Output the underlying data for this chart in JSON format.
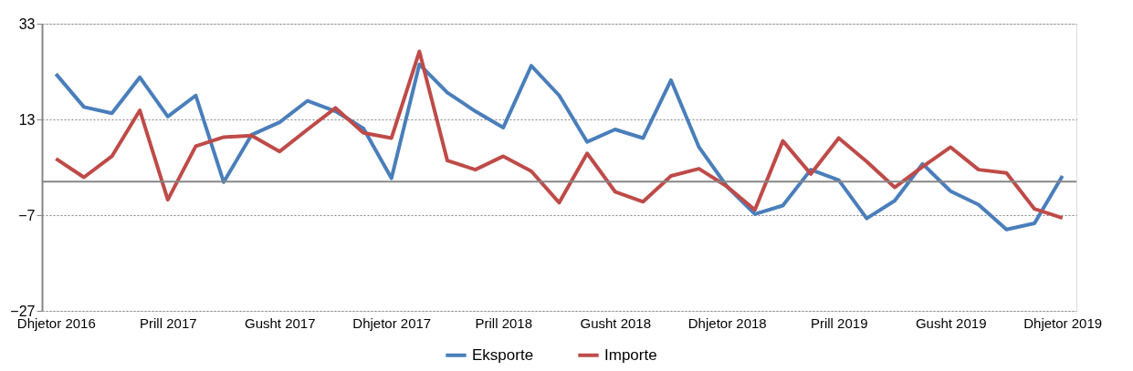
{
  "chart_data": {
    "type": "line",
    "categories": [
      "Dhjetor 2016",
      null,
      null,
      null,
      "Prill 2017",
      null,
      null,
      null,
      "Gusht 2017",
      null,
      null,
      null,
      "Dhjetor 2017",
      null,
      null,
      null,
      "Prill 2018",
      null,
      null,
      null,
      "Gusht 2018",
      null,
      null,
      null,
      "Dhjetor 2018",
      null,
      null,
      null,
      "Prill 2019",
      null,
      null,
      null,
      "Gusht 2019",
      null,
      null,
      null,
      "Dhjetor 2019"
    ],
    "series": [
      {
        "name": "Eksporte",
        "color": "#4a7ebb",
        "values": [
          22.5,
          15.6,
          14.3,
          21.8,
          13.6,
          18.0,
          -0.1,
          9.8,
          12.4,
          16.9,
          14.7,
          11.1,
          0.7,
          24.5,
          18.6,
          14.7,
          11.3,
          24.2,
          18.0,
          8.3,
          10.9,
          9.1,
          21.2,
          7.2,
          -1.0,
          -6.8,
          -5.0,
          2.5,
          0.3,
          -7.7,
          -4.0,
          3.7,
          -2.0,
          -4.8,
          -10.0,
          -8.7,
          1.2
        ]
      },
      {
        "name": "Importe",
        "color": "#be4b48",
        "values": [
          4.8,
          0.9,
          5.3,
          14.9,
          -3.8,
          7.4,
          9.3,
          9.6,
          6.3,
          10.9,
          15.4,
          10.2,
          9.1,
          27.2,
          4.4,
          2.5,
          5.3,
          2.2,
          -4.4,
          5.9,
          -2.1,
          -4.2,
          1.2,
          2.7,
          -1.0,
          -5.9,
          8.5,
          1.6,
          9.1,
          4.2,
          -1.2,
          3.1,
          7.2,
          2.5,
          1.8,
          -5.7,
          -7.6
        ]
      }
    ],
    "ylim": [
      -27,
      33
    ],
    "yticks": [
      -27,
      -7,
      13,
      33
    ],
    "ref_lines": [
      {
        "axis": "y",
        "value": 0,
        "color": "#868686"
      }
    ],
    "grid": "y",
    "legend": "bottom",
    "line_style": "solid",
    "marker": "none"
  }
}
